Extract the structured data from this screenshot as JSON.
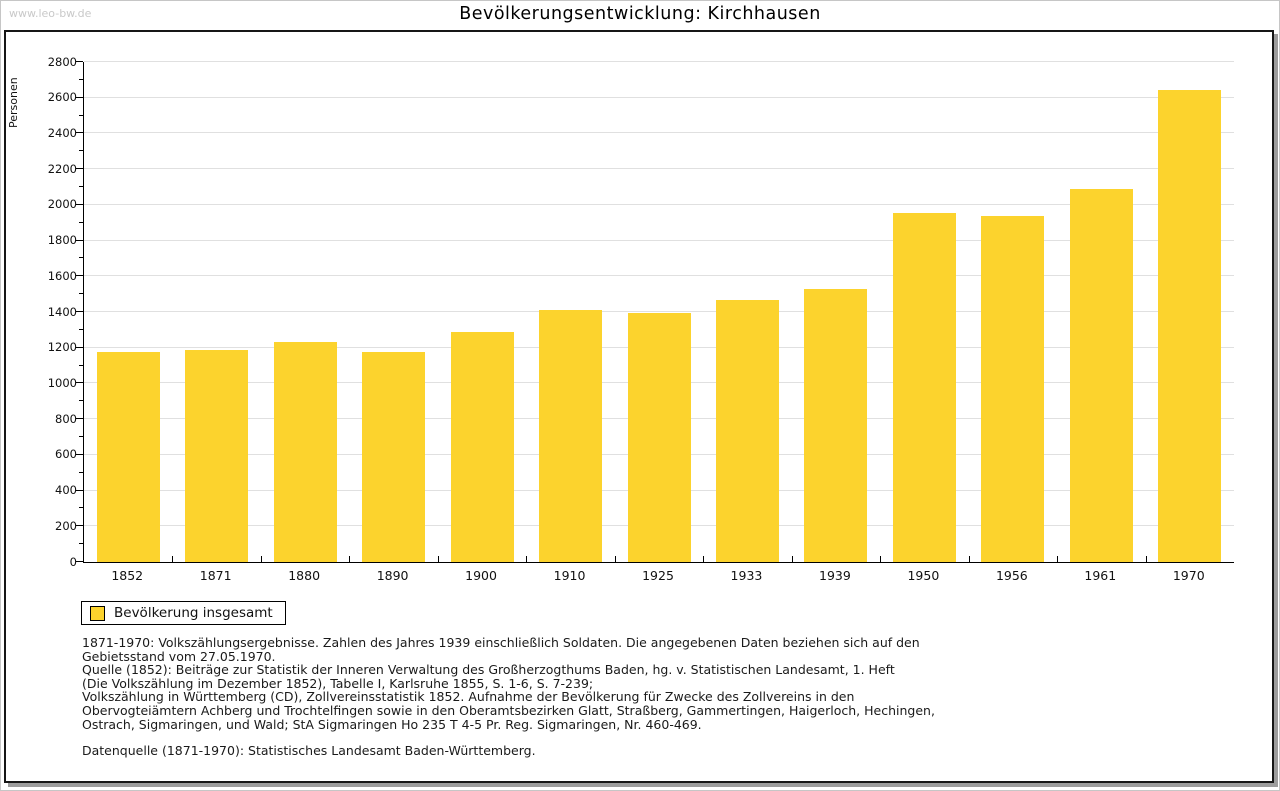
{
  "watermark": "www.leo-bw.de",
  "title": "Bevölkerungsentwicklung: Kirchhausen",
  "chart_data": {
    "type": "bar",
    "title": "Bevölkerungsentwicklung: Kirchhausen",
    "xlabel": "",
    "ylabel": "Personen",
    "categories": [
      "1852",
      "1871",
      "1880",
      "1890",
      "1900",
      "1910",
      "1925",
      "1933",
      "1939",
      "1950",
      "1956",
      "1961",
      "1970"
    ],
    "values": [
      1175,
      1185,
      1230,
      1175,
      1290,
      1410,
      1395,
      1470,
      1530,
      1955,
      1935,
      2090,
      2645
    ],
    "ylim": [
      0,
      2800
    ],
    "ytick_step": 200,
    "y_minor_tick_step": 100,
    "grid": true,
    "bar_color": "#FCD32D",
    "grid_color": "#e0e0e0",
    "legend": [
      {
        "label": "Bevölkerung insgesamt",
        "color": "#FCD32D"
      }
    ],
    "legend_position": "bottom-left"
  },
  "footnotes": {
    "lines": [
      "1871-1970: Volkszählungsergebnisse. Zahlen des Jahres 1939 einschließlich Soldaten. Die angegebenen Daten beziehen sich auf den",
      "Gebietsstand vom 27.05.1970.",
      "Quelle (1852): Beiträge zur Statistik der Inneren Verwaltung des Großherzogthums Baden, hg. v. Statistischen Landesamt, 1. Heft",
      "(Die Volkszählung im Dezember 1852), Tabelle I, Karlsruhe 1855, S. 1-6, S. 7-239;",
      "Volkszählung in Württemberg (CD), Zollvereinsstatistik 1852. Aufnahme der Bevölkerung für Zwecke des Zollvereins in den",
      "Obervogteiämtern Achberg und Trochtelfingen sowie in den Oberamtsbezirken Glatt, Straßberg, Gammertingen, Haigerloch, Hechingen,",
      "Ostrach, Sigmaringen, und Wald; StA Sigmaringen Ho 235 T 4-5 Pr. Reg. Sigmaringen, Nr. 460-469."
    ],
    "datasource": "Datenquelle (1871-1970): Statistisches Landesamt Baden-Württemberg."
  },
  "colors": {
    "bar": "#FCD32D",
    "grid": "#e0e0e0",
    "axis": "#000000",
    "watermark": "#c9c9c9",
    "frame_border": "#161616",
    "frame_shadow": "#9c9c9c"
  }
}
